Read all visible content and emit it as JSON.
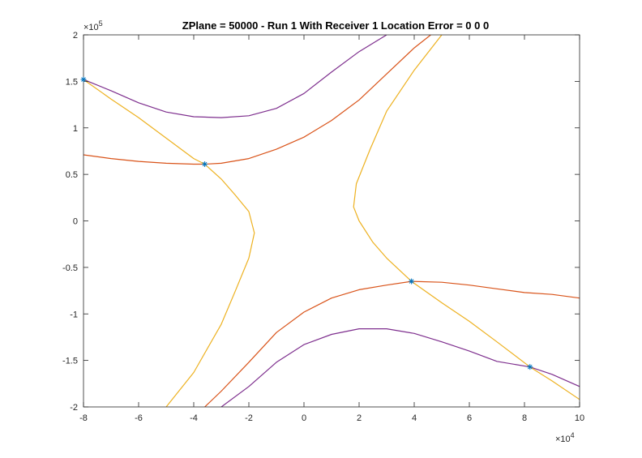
{
  "chart_data": {
    "type": "line",
    "title": "ZPlane = 50000 - Run 1 With Receiver 1 Location Error = 0  0  0",
    "xlabel": "",
    "ylabel": "",
    "xlim": [
      -80000,
      100000
    ],
    "ylim": [
      -200000,
      200000
    ],
    "x_ticks": [
      -80000,
      -60000,
      -40000,
      -20000,
      0,
      20000,
      40000,
      60000,
      80000,
      100000
    ],
    "x_tick_labels": [
      "-8",
      "-6",
      "-4",
      "-2",
      "0",
      "2",
      "4",
      "6",
      "8",
      "10"
    ],
    "y_ticks": [
      -200000,
      -150000,
      -100000,
      -50000,
      0,
      50000,
      100000,
      150000,
      200000
    ],
    "y_tick_labels": [
      "-2",
      "-1.5",
      "-1",
      "-0.5",
      "0",
      "0.5",
      "1",
      "1.5",
      "2"
    ],
    "x_exponent": {
      "base": "×10",
      "power": "4"
    },
    "y_exponent": {
      "base": "×10",
      "power": "5"
    },
    "grid": false,
    "legend": "none",
    "colors": {
      "purple": "#7E2F8E",
      "red": "#D95319",
      "yellow": "#EDB120",
      "marker": "#0072BD"
    },
    "series": [
      {
        "color": "#7E2F8E",
        "points": [
          [
            -80000,
            152000
          ],
          [
            -70000,
            140000
          ],
          [
            -60000,
            127000
          ],
          [
            -50000,
            117000
          ],
          [
            -40000,
            112000
          ],
          [
            -30000,
            111000
          ],
          [
            -20000,
            113000
          ],
          [
            -10000,
            121000
          ],
          [
            0,
            137000
          ],
          [
            10000,
            160000
          ],
          [
            20000,
            182000
          ],
          [
            30000,
            200000
          ]
        ]
      },
      {
        "color": "#7E2F8E",
        "points": [
          [
            -30000,
            -200000
          ],
          [
            -20000,
            -178000
          ],
          [
            -10000,
            -152000
          ],
          [
            0,
            -133000
          ],
          [
            10000,
            -122000
          ],
          [
            20000,
            -116000
          ],
          [
            30000,
            -116000
          ],
          [
            40000,
            -121000
          ],
          [
            50000,
            -130000
          ],
          [
            60000,
            -140000
          ],
          [
            70000,
            -151000
          ],
          [
            82000,
            -157000
          ],
          [
            90000,
            -165000
          ],
          [
            100000,
            -178000
          ]
        ]
      },
      {
        "color": "#D95319",
        "points": [
          [
            -80000,
            71000
          ],
          [
            -70000,
            67000
          ],
          [
            -60000,
            64000
          ],
          [
            -50000,
            62000
          ],
          [
            -40000,
            61000
          ],
          [
            -36000,
            61000
          ],
          [
            -30000,
            62000
          ],
          [
            -20000,
            67000
          ],
          [
            -10000,
            77000
          ],
          [
            0,
            90000
          ],
          [
            10000,
            108000
          ],
          [
            20000,
            130000
          ],
          [
            30000,
            158000
          ],
          [
            40000,
            186000
          ],
          [
            46000,
            200000
          ]
        ]
      },
      {
        "color": "#D95319",
        "points": [
          [
            -36000,
            -200000
          ],
          [
            -30000,
            -183000
          ],
          [
            -20000,
            -152000
          ],
          [
            -10000,
            -120000
          ],
          [
            0,
            -98000
          ],
          [
            10000,
            -83000
          ],
          [
            20000,
            -74000
          ],
          [
            30000,
            -69000
          ],
          [
            39000,
            -65000
          ],
          [
            50000,
            -66000
          ],
          [
            60000,
            -69000
          ],
          [
            70000,
            -73000
          ],
          [
            80000,
            -77000
          ],
          [
            90000,
            -79000
          ],
          [
            100000,
            -83000
          ]
        ]
      },
      {
        "color": "#EDB120",
        "points": [
          [
            -80000,
            152000
          ],
          [
            -70000,
            131000
          ],
          [
            -60000,
            111000
          ],
          [
            -50000,
            89000
          ],
          [
            -40000,
            67000
          ],
          [
            -36000,
            61000
          ],
          [
            -30000,
            45000
          ],
          [
            -25000,
            28000
          ],
          [
            -20000,
            10000
          ],
          [
            -18000,
            -13000
          ],
          [
            -20000,
            -40000
          ],
          [
            -25000,
            -76000
          ],
          [
            -30000,
            -111000
          ],
          [
            -40000,
            -163000
          ],
          [
            -50000,
            -200000
          ]
        ]
      },
      {
        "color": "#EDB120",
        "points": [
          [
            50000,
            200000
          ],
          [
            40000,
            162000
          ],
          [
            30000,
            118000
          ],
          [
            24000,
            77000
          ],
          [
            19000,
            40000
          ],
          [
            18000,
            15000
          ],
          [
            20000,
            0
          ],
          [
            25000,
            -23000
          ],
          [
            30000,
            -40000
          ],
          [
            39000,
            -65000
          ],
          [
            50000,
            -88000
          ],
          [
            60000,
            -108000
          ],
          [
            70000,
            -130000
          ],
          [
            82000,
            -157000
          ],
          [
            90000,
            -172000
          ],
          [
            100000,
            -192000
          ]
        ]
      }
    ],
    "markers": [
      [
        -80000,
        152000
      ],
      [
        -36000,
        61000
      ],
      [
        39000,
        -65000
      ],
      [
        82000,
        -157000
      ]
    ]
  }
}
